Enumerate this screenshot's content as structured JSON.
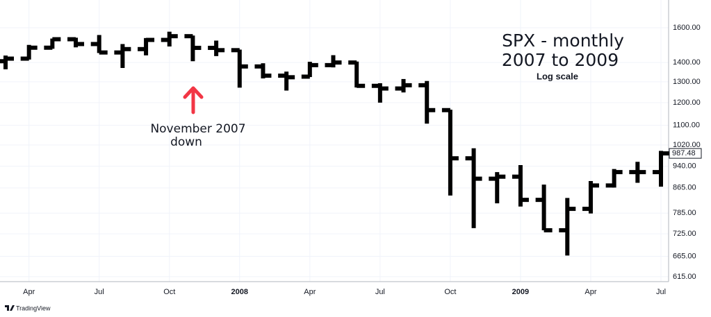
{
  "chart_data": {
    "type": "ohlc",
    "title": "SPX - monthly",
    "subtitle": "2007 to 2009",
    "note": "Log scale",
    "annotation": [
      "November 2007",
      "down"
    ],
    "brand": "TradingView",
    "categories": [
      null,
      "Apr",
      null,
      null,
      "Jul",
      null,
      null,
      "Oct",
      null,
      null,
      "2008",
      null,
      null,
      "Apr",
      null,
      null,
      "Jul",
      null,
      null,
      "Oct",
      null,
      null,
      "2009",
      null,
      null,
      "Apr",
      null,
      null,
      "Jul"
    ],
    "open": [
      1407,
      1421,
      1482,
      1531,
      1503,
      1455,
      1474,
      1527,
      1549,
      1481,
      1468,
      1379,
      1331,
      1326,
      1386,
      1400,
      1280,
      1267,
      1283,
      1166,
      969,
      896,
      903,
      826,
      735,
      798,
      873,
      919,
      919
    ],
    "high": [
      1438,
      1498,
      1535,
      1540,
      1556,
      1503,
      1538,
      1576,
      1553,
      1523,
      1471,
      1396,
      1352,
      1404,
      1440,
      1405,
      1293,
      1314,
      1304,
      1168,
      1007,
      919,
      944,
      876,
      832,
      888,
      930,
      956,
      997
    ],
    "low": [
      1364,
      1416,
      1476,
      1484,
      1452,
      1371,
      1439,
      1489,
      1407,
      1435,
      1271,
      1317,
      1257,
      1324,
      1374,
      1272,
      1200,
      1248,
      1107,
      840,
      741,
      815,
      805,
      735,
      667,
      784,
      866,
      882,
      869
    ],
    "close": [
      1421,
      1482,
      1531,
      1503,
      1455,
      1474,
      1527,
      1549,
      1481,
      1468,
      1379,
      1331,
      1323,
      1386,
      1400,
      1280,
      1267,
      1283,
      1166,
      969,
      896,
      903,
      826,
      735,
      798,
      873,
      919,
      919,
      987.48
    ],
    "color": "#000000",
    "log_scale": true,
    "grid": true,
    "ylim": [
      605,
      1780
    ],
    "yticks": [
      {
        "value": 1600,
        "label": "1600.00"
      },
      {
        "value": 1400,
        "label": "1400.00"
      },
      {
        "value": 1300,
        "label": "1300.00"
      },
      {
        "value": 1200,
        "label": "1200.00"
      },
      {
        "value": 1100,
        "label": "1100.00"
      },
      {
        "value": 1020,
        "label": "1020.00"
      },
      {
        "value": 940,
        "label": "940.00"
      },
      {
        "value": 865,
        "label": "865.00"
      },
      {
        "value": 785,
        "label": "785.00"
      },
      {
        "value": 725,
        "label": "725.00"
      },
      {
        "value": 665,
        "label": "665.00"
      },
      {
        "value": 615,
        "label": "615.00"
      }
    ]
  }
}
